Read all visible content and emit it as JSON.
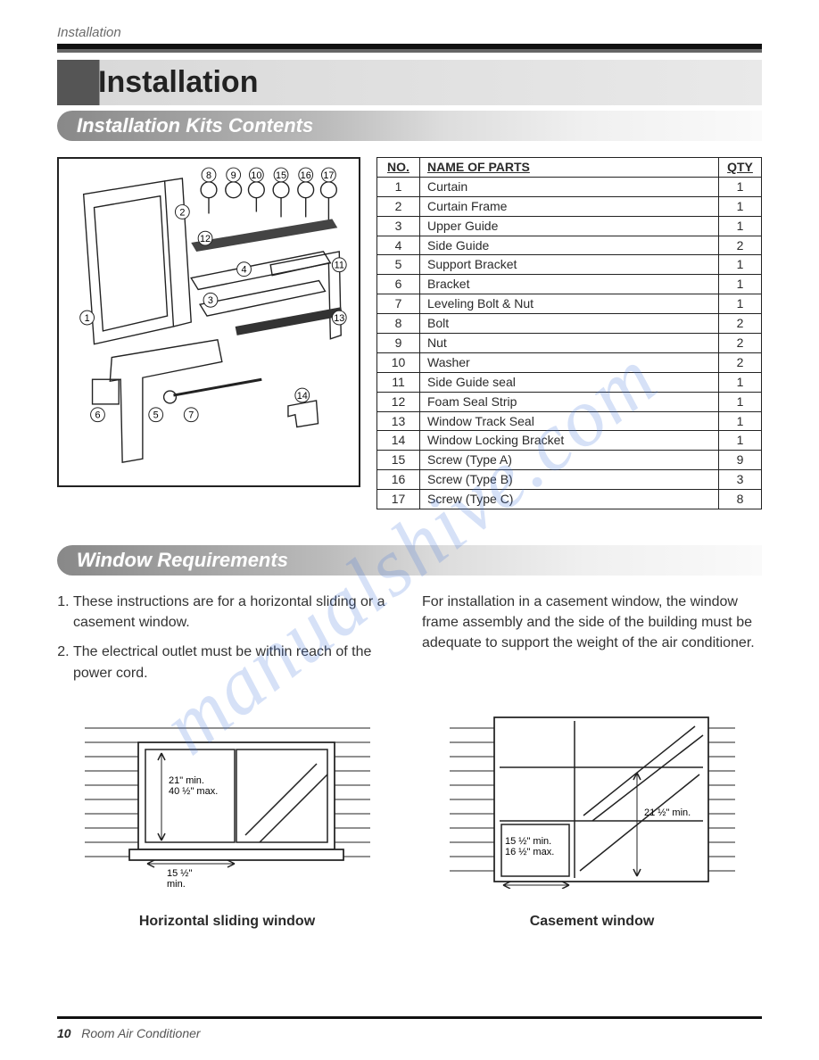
{
  "page": {
    "header": "Installation",
    "title": "Installation",
    "page_number": "10",
    "footer_doc": "Room Air Conditioner"
  },
  "watermark": "manualshive.com",
  "section1": {
    "title": "Installation Kits Contents"
  },
  "section2": {
    "title": "Window Requirements"
  },
  "parts_table": {
    "columns": [
      "NO.",
      "NAME OF PARTS",
      "QTY"
    ],
    "rows": [
      [
        "1",
        "Curtain",
        "1"
      ],
      [
        "2",
        "Curtain Frame",
        "1"
      ],
      [
        "3",
        "Upper Guide",
        "1"
      ],
      [
        "4",
        "Side Guide",
        "2"
      ],
      [
        "5",
        "Support Bracket",
        "1"
      ],
      [
        "6",
        "Bracket",
        "1"
      ],
      [
        "7",
        "Leveling Bolt & Nut",
        "1"
      ],
      [
        "8",
        "Bolt",
        "2"
      ],
      [
        "9",
        "Nut",
        "2"
      ],
      [
        "10",
        "Washer",
        "2"
      ],
      [
        "11",
        "Side Guide seal",
        "1"
      ],
      [
        "12",
        "Foam Seal Strip",
        "1"
      ],
      [
        "13",
        "Window Track Seal",
        "1"
      ],
      [
        "14",
        "Window Locking Bracket",
        "1"
      ],
      [
        "15",
        "Screw (Type A)",
        "9"
      ],
      [
        "16",
        "Screw (Type B)",
        "3"
      ],
      [
        "17",
        "Screw (Type C)",
        "8"
      ]
    ]
  },
  "requirements": {
    "left": {
      "item1": "These instructions are for a horizontal sliding or a casement window.",
      "item2": "The electrical outlet must be within reach of the power cord."
    },
    "right": "For installation in a casement window, the window frame assembly and the side of the building must be adequate to support the weight of the air conditioner."
  },
  "figures": {
    "horizontal": {
      "dim_h": "21\" min.\n40 ½\" max.",
      "dim_w": "15 ½\"\nmin.",
      "caption": "Horizontal sliding window"
    },
    "casement": {
      "dim_h": "21 ½\" min.",
      "dim_w": "15 ½\" min.\n16 ½\" max.",
      "caption": "Casement window"
    }
  },
  "style": {
    "page_bg": "#ffffff",
    "text_color": "#2a2a2a",
    "accent_gray": "#888888",
    "border_color": "#222222",
    "watermark_color": "rgba(70,120,220,0.22)",
    "font_family": "Arial, Helvetica, sans-serif",
    "title_fontsize": 34,
    "subheader_fontsize": 22,
    "body_fontsize": 16,
    "table_fontsize": 14
  }
}
